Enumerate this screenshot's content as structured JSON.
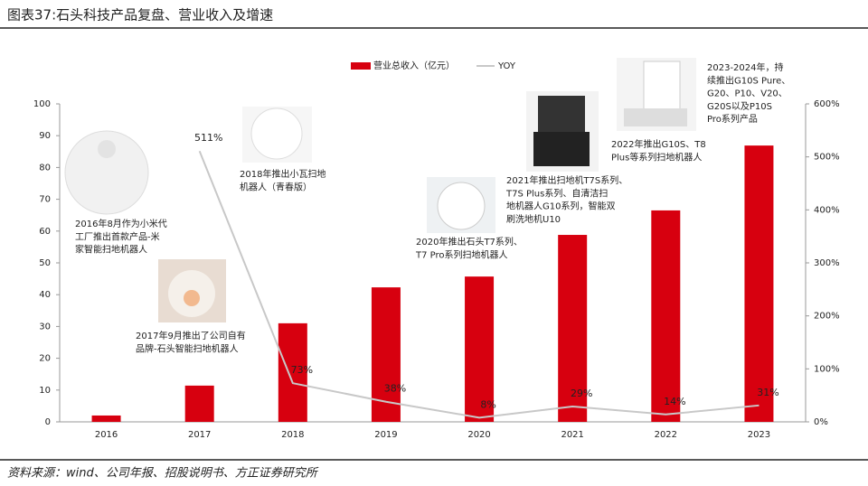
{
  "chart_data": {
    "type": "bar_line",
    "title": "图表37:石头科技产品复盘、营业收入及增速",
    "source": "资料来源：wind、公司年报、招股说明书、方正证券研究所",
    "categories": [
      "2016",
      "2017",
      "2018",
      "2019",
      "2020",
      "2021",
      "2022",
      "2023"
    ],
    "series": [
      {
        "name": "营业总收入（亿元）",
        "color": "#d7000f",
        "values": [
          2.0,
          11.4,
          31.0,
          42.3,
          45.7,
          58.8,
          66.5,
          86.9
        ]
      },
      {
        "name": "YOY",
        "color": "#c8c8c8",
        "axis": "y2",
        "values": [
          null,
          511,
          73,
          38,
          8,
          29,
          14,
          31
        ],
        "value_labels": [
          null,
          "511%",
          "73%",
          "38%",
          "8%",
          "29%",
          "14%",
          "31%"
        ]
      }
    ],
    "ylim": [
      0,
      100
    ],
    "yticks": [
      0,
      10,
      20,
      30,
      40,
      50,
      60,
      70,
      80,
      90,
      100
    ],
    "y2lim": [
      0,
      600
    ],
    "y2ticks": [
      {
        "value": 0,
        "label": "0%"
      },
      {
        "value": 100,
        "label": "100%"
      },
      {
        "value": 200,
        "label": "200%"
      },
      {
        "value": 300,
        "label": "300%"
      },
      {
        "value": 400,
        "label": "400%"
      },
      {
        "value": 500,
        "label": "500%"
      },
      {
        "value": 600,
        "label": "600%"
      }
    ],
    "annotations": [
      [
        "2016年8月作为小米代",
        "工厂推出首款产品-米",
        "家智能扫地机器人"
      ],
      [
        "2017年9月推出了公司自有",
        "品牌-石头智能扫地机器人"
      ],
      [
        "2018年推出小瓦扫地",
        "机器人（青春版）"
      ],
      [
        "2020年推出石头T7系列、",
        "T7 Pro系列扫地机器人"
      ],
      [
        "2021年推出扫地机T7S系列、",
        "T7S Plus系列、自清洁扫",
        "地机器人G10系列，智能双",
        "刷洗地机U10"
      ],
      [
        "2022年推出G10S、T8",
        "Plus等系列扫地机器人"
      ],
      [
        "2023-2024年，持",
        "续推出G10S Pure、",
        "G20、P10、V20、",
        "G20S以及P10S",
        "Pro系列产品"
      ]
    ]
  }
}
